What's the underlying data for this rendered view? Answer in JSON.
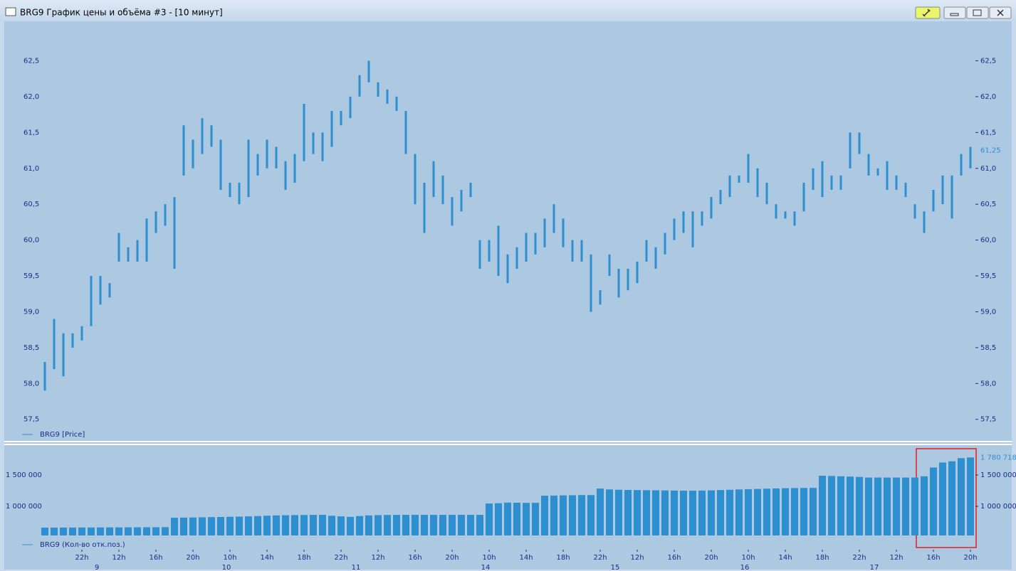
{
  "window": {
    "title": "BRG9 График цены и объёма #3 - [10 минут]"
  },
  "chart_data": [
    {
      "type": "hilo",
      "ylim": [
        57.2,
        63.05
      ],
      "yticks": [
        {
          "value": 57.5,
          "label": "57,5"
        },
        {
          "value": 58,
          "label": "58,0"
        },
        {
          "value": 58.5,
          "label": "58,5"
        },
        {
          "value": 59,
          "label": "59,0"
        },
        {
          "value": 59.5,
          "label": "59,5"
        },
        {
          "value": 60,
          "label": "60,0"
        },
        {
          "value": 60.5,
          "label": "60,5"
        },
        {
          "value": 61,
          "label": "61,0"
        },
        {
          "value": 61.5,
          "label": "61,5"
        },
        {
          "value": 62,
          "label": "62,0"
        },
        {
          "value": 62.5,
          "label": "62,5"
        }
      ],
      "last_value": {
        "value": 61.25,
        "label": "61,25"
      },
      "series": [
        {
          "name": "BRG9 [Price]",
          "color": "#2d8fd0",
          "low": [
            57.9,
            58.2,
            58.1,
            58.5,
            58.6,
            58.8,
            59.1,
            59.2,
            59.7,
            59.7,
            59.7,
            59.7,
            60.1,
            60.2,
            59.6,
            60.9,
            61.0,
            61.2,
            61.3,
            60.7,
            60.6,
            60.5,
            60.6,
            60.9,
            61.0,
            61.0,
            60.7,
            60.8,
            61.1,
            61.2,
            61.1,
            61.3,
            61.6,
            61.7,
            62.0,
            62.2,
            62.0,
            61.9,
            61.8,
            61.2,
            60.5,
            60.1,
            60.6,
            60.5,
            60.2,
            60.4,
            60.6,
            59.6,
            59.7,
            59.5,
            59.4,
            59.6,
            59.7,
            59.8,
            59.9,
            60.1,
            59.9,
            59.7,
            59.7,
            59.0,
            59.1,
            59.5,
            59.2,
            59.3,
            59.4,
            59.7,
            59.6,
            59.8,
            60.0,
            60.1,
            59.9,
            60.2,
            60.3,
            60.5,
            60.6,
            60.8,
            60.8,
            60.6,
            60.5,
            60.3,
            60.3,
            60.2,
            60.4,
            60.7,
            60.6,
            60.7,
            60.7,
            61.0,
            61.2,
            60.9,
            60.9,
            60.7,
            60.7,
            60.6,
            60.3,
            60.1,
            60.4,
            60.5,
            60.3,
            60.9,
            61.0
          ],
          "high": [
            58.3,
            58.9,
            58.7,
            58.7,
            58.8,
            59.5,
            59.5,
            59.4,
            60.1,
            59.9,
            60.0,
            60.3,
            60.4,
            60.5,
            60.6,
            61.6,
            61.4,
            61.7,
            61.6,
            61.4,
            60.8,
            60.8,
            61.4,
            61.2,
            61.4,
            61.3,
            61.1,
            61.2,
            61.9,
            61.5,
            61.5,
            61.8,
            61.8,
            62.0,
            62.3,
            62.5,
            62.2,
            62.1,
            62.0,
            61.8,
            61.2,
            60.8,
            61.1,
            60.9,
            60.6,
            60.7,
            60.8,
            60.0,
            60.0,
            60.2,
            59.8,
            59.9,
            60.1,
            60.1,
            60.3,
            60.5,
            60.3,
            60.0,
            60.0,
            59.8,
            59.3,
            59.8,
            59.6,
            59.6,
            59.7,
            60.0,
            59.9,
            60.1,
            60.3,
            60.4,
            60.4,
            60.4,
            60.6,
            60.7,
            60.9,
            60.9,
            61.2,
            61.0,
            60.8,
            60.5,
            60.4,
            60.4,
            60.8,
            61.0,
            61.1,
            60.9,
            60.9,
            61.5,
            61.5,
            61.2,
            61.0,
            61.1,
            60.9,
            60.8,
            60.5,
            60.4,
            60.7,
            60.9,
            60.9,
            61.2,
            61.3
          ]
        }
      ]
    },
    {
      "type": "bar",
      "ylim": [
        535000,
        1955000
      ],
      "yticks": [
        {
          "value": 1000000,
          "label": "1 000 000"
        },
        {
          "value": 1500000,
          "label": "1 500 000"
        }
      ],
      "last_value": {
        "value": 1780718,
        "label": "1 780 718"
      },
      "xticks": [
        {
          "value": 4,
          "label": "22h"
        },
        {
          "value": 8,
          "label": "12h"
        },
        {
          "value": 12,
          "label": "16h"
        },
        {
          "value": 16,
          "label": "20h"
        },
        {
          "value": 20,
          "label": "10h"
        },
        {
          "value": 24,
          "label": "14h"
        },
        {
          "value": 28,
          "label": "18h"
        },
        {
          "value": 32,
          "label": "22h"
        },
        {
          "value": 36,
          "label": "12h"
        },
        {
          "value": 40,
          "label": "16h"
        },
        {
          "value": 44,
          "label": "20h"
        },
        {
          "value": 48,
          "label": "10h"
        },
        {
          "value": 52,
          "label": "14h"
        },
        {
          "value": 56,
          "label": "18h"
        },
        {
          "value": 60,
          "label": "22h"
        },
        {
          "value": 64,
          "label": "12h"
        },
        {
          "value": 68,
          "label": "16h"
        },
        {
          "value": 72,
          "label": "20h"
        },
        {
          "value": 76,
          "label": "10h"
        },
        {
          "value": 80,
          "label": "14h"
        },
        {
          "value": 84,
          "label": "18h"
        },
        {
          "value": 88,
          "label": "22h"
        },
        {
          "value": 92,
          "label": "12h"
        },
        {
          "value": 96,
          "label": "16h"
        },
        {
          "value": 100,
          "label": "20h"
        }
      ],
      "day_ticks": [
        {
          "value": 6,
          "label": "9"
        },
        {
          "value": 20,
          "label": "10"
        },
        {
          "value": 34,
          "label": "11"
        },
        {
          "value": 48,
          "label": "14"
        },
        {
          "value": 62,
          "label": "15"
        },
        {
          "value": 76,
          "label": "16"
        },
        {
          "value": 90,
          "label": "17"
        }
      ],
      "series": [
        {
          "name": "BRG9 (Кол-во отк.поз.)",
          "color": "#2d8fd0",
          "values": [
            660000,
            660000,
            661000,
            661000,
            662000,
            662000,
            663000,
            664000,
            664000,
            665000,
            665000,
            666000,
            666000,
            667000,
            818000,
            820000,
            822000,
            825000,
            828000,
            830000,
            833000,
            836000,
            840000,
            845000,
            850000,
            855000,
            858000,
            860000,
            862000,
            863000,
            864000,
            850000,
            840000,
            832000,
            845000,
            855000,
            860000,
            862000,
            863000,
            864000,
            864000,
            864000,
            864000,
            864000,
            864000,
            864000,
            864000,
            864000,
            1045000,
            1050000,
            1060000,
            1058000,
            1055000,
            1056000,
            1170000,
            1172000,
            1175000,
            1177000,
            1180000,
            1180000,
            1284000,
            1270000,
            1265000,
            1262000,
            1260000,
            1258000,
            1256000,
            1254000,
            1252000,
            1250000,
            1250000,
            1252000,
            1255000,
            1260000,
            1265000,
            1270000,
            1274000,
            1278000,
            1282000,
            1286000,
            1290000,
            1292000,
            1294000,
            1295000,
            1489000,
            1485000,
            1480000,
            1475000,
            1470000,
            1460000,
            1460000,
            1460000,
            1460000,
            1460000,
            1460000,
            1480000,
            1620000,
            1700000,
            1720000,
            1770000,
            1780718
          ]
        }
      ]
    }
  ]
}
